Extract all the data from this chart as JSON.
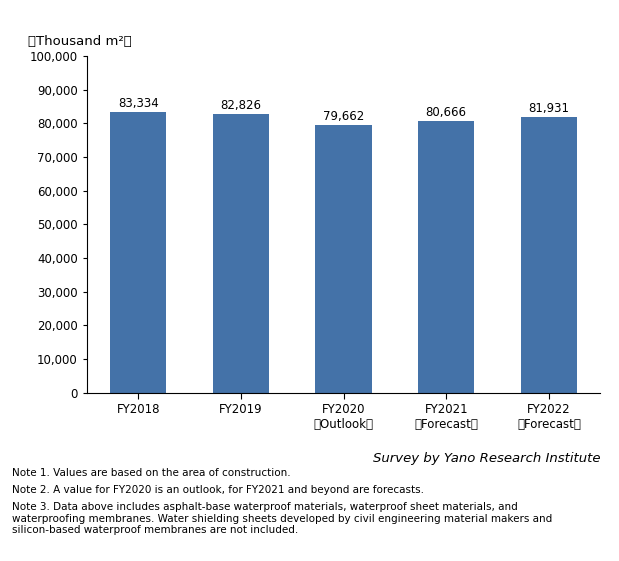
{
  "categories": [
    "FY2018",
    "FY2019",
    "FY2020\n（Outlook）",
    "FY2021\n（Forecast）",
    "FY2022\n（Forecast）"
  ],
  "values": [
    83334,
    82826,
    79662,
    80666,
    81931
  ],
  "bar_color": "#4472a8",
  "bar_edge_color": "#4472a8",
  "ylabel": "（Thousand m²）",
  "ylim": [
    0,
    100000
  ],
  "yticks": [
    0,
    10000,
    20000,
    30000,
    40000,
    50000,
    60000,
    70000,
    80000,
    90000,
    100000
  ],
  "value_labels": [
    "83,334",
    "82,826",
    "79,662",
    "80,666",
    "81,931"
  ],
  "survey_text": "Survey by Yano Research Institute",
  "note1": "Note 1. Values are based on the area of construction.",
  "note2": "Note 2. A value for FY2020 is an outlook, for FY2021 and beyond are forecasts.",
  "note3": "Note 3. Data above includes asphalt-base waterproof materials, waterproof sheet materials, and\nwaterproofing membranes. Water shielding sheets developed by civil engineering material makers and\nsilicon-based waterproof membranes are not included.",
  "background_color": "#ffffff",
  "bar_width": 0.55,
  "value_fontsize": 8.5,
  "label_fontsize": 8.5,
  "ylabel_fontsize": 9.5,
  "note_fontsize": 7.5,
  "survey_fontsize": 9.5
}
